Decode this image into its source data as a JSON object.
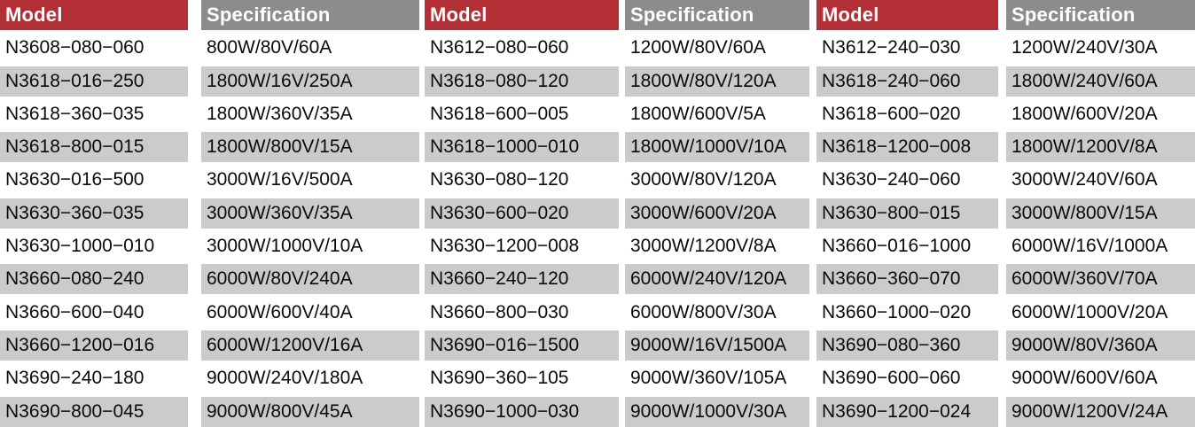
{
  "table": {
    "header": {
      "model_label": "Model",
      "spec_label": "Specification"
    },
    "colors": {
      "model_header_bg": "#b22f36",
      "spec_header_bg": "#8c8c8f",
      "header_text": "#ffffff",
      "row_bg": "#ffffff",
      "row_alt_bg": "#cbcbcb",
      "cell_text": "#0a0a0a"
    },
    "rows": [
      [
        "N3608−080−060",
        "800W/80V/60A",
        "N3612−080−060",
        "1200W/80V/60A",
        "N3612−240−030",
        "1200W/240V/30A"
      ],
      [
        "N3618−016−250",
        "1800W/16V/250A",
        "N3618−080−120",
        "1800W/80V/120A",
        "N3618−240−060",
        "1800W/240V/60A"
      ],
      [
        "N3618−360−035",
        "1800W/360V/35A",
        "N3618−600−005",
        "1800W/600V/5A",
        "N3618−600−020",
        "1800W/600V/20A"
      ],
      [
        "N3618−800−015",
        "1800W/800V/15A",
        "N3618−1000−010",
        "1800W/1000V/10A",
        "N3618−1200−008",
        "1800W/1200V/8A"
      ],
      [
        "N3630−016−500",
        "3000W/16V/500A",
        "N3630−080−120",
        "3000W/80V/120A",
        "N3630−240−060",
        "3000W/240V/60A"
      ],
      [
        "N3630−360−035",
        "3000W/360V/35A",
        "N3630−600−020",
        "3000W/600V/20A",
        "N3630−800−015",
        "3000W/800V/15A"
      ],
      [
        "N3630−1000−010",
        "3000W/1000V/10A",
        "N3630−1200−008",
        "3000W/1200V/8A",
        "N3660−016−1000",
        "6000W/16V/1000A"
      ],
      [
        "N3660−080−240",
        "6000W/80V/240A",
        "N3660−240−120",
        "6000W/240V/120A",
        "N3660−360−070",
        "6000W/360V/70A"
      ],
      [
        "N3660−600−040",
        "6000W/600V/40A",
        "N3660−800−030",
        "6000W/800V/30A",
        "N3660−1000−020",
        "6000W/1000V/20A"
      ],
      [
        "N3660−1200−016",
        "6000W/1200V/16A",
        "N3690−016−1500",
        "9000W/16V/1500A",
        "N3690−080−360",
        "9000W/80V/360A"
      ],
      [
        "N3690−240−180",
        "9000W/240V/180A",
        "N3690−360−105",
        "9000W/360V/105A",
        "N3690−600−060",
        "9000W/600V/60A"
      ],
      [
        "N3690−800−045",
        "9000W/800V/45A",
        "N3690−1000−030",
        "9000W/1000V/30A",
        "N3690−1200−024",
        "9000W/1200V/24A"
      ]
    ]
  }
}
